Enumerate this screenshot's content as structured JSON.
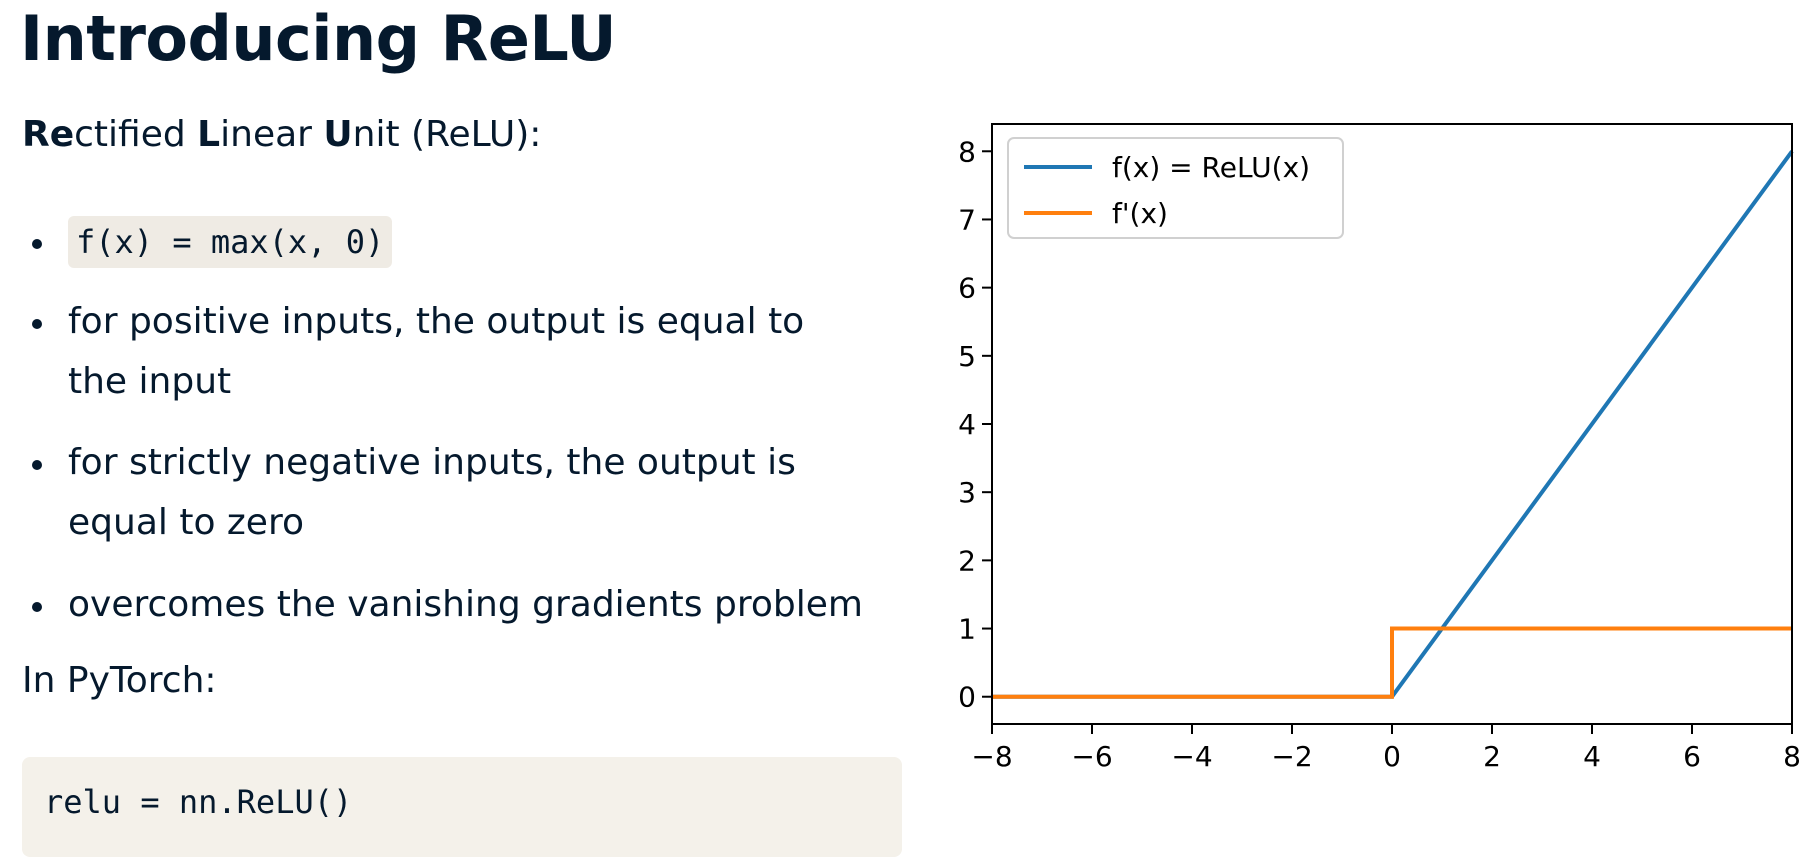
{
  "slide": {
    "title": "Introducing ReLU",
    "subtitle_parts": [
      {
        "text": "Re",
        "bold": true
      },
      {
        "text": "ctified ",
        "bold": false
      },
      {
        "text": "L",
        "bold": true
      },
      {
        "text": "inear ",
        "bold": false
      },
      {
        "text": "U",
        "bold": true
      },
      {
        "text": "nit (ReLU):",
        "bold": false
      }
    ],
    "bullets": [
      {
        "code": "f(x) = max(x, 0)"
      },
      {
        "text": "for positive inputs, the output is equal to the input"
      },
      {
        "text": "for strictly negative inputs, the output is equal to zero"
      },
      {
        "text": "overcomes the vanishing gradients problem"
      }
    ],
    "pytorch_label": "In PyTorch:",
    "code_block": "relu = nn.ReLU()"
  },
  "chart_data": {
    "type": "line",
    "title": "",
    "xlabel": "",
    "ylabel": "",
    "xlim": [
      -8,
      8
    ],
    "ylim": [
      -0.4,
      8.4
    ],
    "xticks": [
      -8,
      -6,
      -4,
      -2,
      0,
      2,
      4,
      6,
      8
    ],
    "xtick_labels": [
      "−8",
      "−6",
      "−4",
      "−2",
      "0",
      "2",
      "4",
      "6",
      "8"
    ],
    "yticks": [
      0,
      1,
      2,
      3,
      4,
      5,
      6,
      7,
      8
    ],
    "ytick_labels": [
      "0",
      "1",
      "2",
      "3",
      "4",
      "5",
      "6",
      "7",
      "8"
    ],
    "grid": false,
    "legend_position": "top-left",
    "series": [
      {
        "name": "f(x) = ReLU(x)",
        "color": "#1f77b4",
        "x": [
          -8,
          0,
          8
        ],
        "y": [
          0,
          0,
          8
        ]
      },
      {
        "name": "f'(x)",
        "color": "#ff7f0e",
        "x": [
          -8,
          0,
          0,
          8
        ],
        "y": [
          0,
          0,
          1,
          1
        ]
      }
    ]
  }
}
